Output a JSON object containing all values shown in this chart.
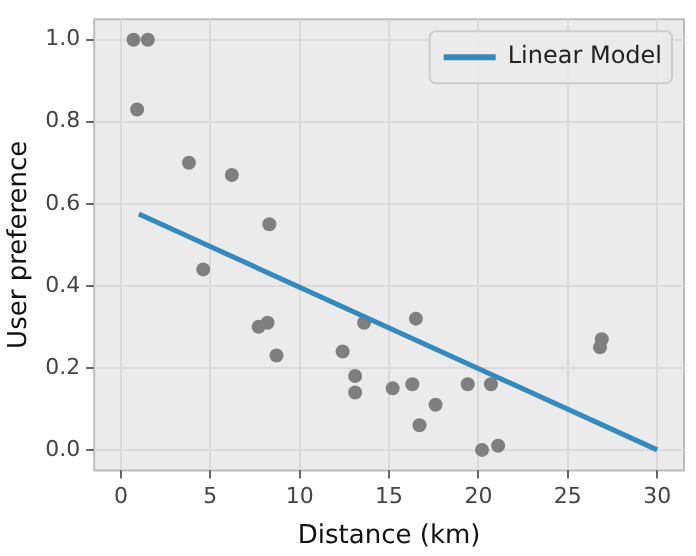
{
  "chart_data": {
    "type": "scatter",
    "xlabel": "Distance (km)",
    "ylabel": "User preference",
    "xlim": [
      -1.5,
      31.5
    ],
    "ylim": [
      -0.05,
      1.05
    ],
    "xticks": [
      0,
      5,
      10,
      15,
      20,
      25,
      30
    ],
    "yticks": [
      {
        "value": 0,
        "label": "0.0"
      },
      {
        "value": 0.2,
        "label": "0.2"
      },
      {
        "value": 0.4,
        "label": "0.4"
      },
      {
        "value": 0.6,
        "label": "0.6"
      },
      {
        "value": 0.8,
        "label": "0.8"
      },
      {
        "value": 1,
        "label": "1.0"
      }
    ],
    "grid": true,
    "legend": "top right",
    "marker": "circle",
    "series": [
      {
        "type": "scatter",
        "color": "#7f7f7f",
        "x": [
          0.7,
          1.5,
          0.9,
          3.8,
          6.2,
          4.6,
          8.3,
          7.7,
          8.2,
          8.7,
          12.4,
          13.1,
          13.1,
          13.6,
          15.2,
          16.3,
          16.5,
          16.7,
          17.6,
          19.4,
          20.2,
          20.7,
          21.1,
          26.8,
          26.9
        ],
        "values": [
          1.0,
          1.0,
          0.83,
          0.7,
          0.67,
          0.44,
          0.55,
          0.3,
          0.31,
          0.23,
          0.24,
          0.18,
          0.14,
          0.31,
          0.15,
          0.16,
          0.32,
          0.06,
          0.11,
          0.16,
          0.0,
          0.16,
          0.01,
          0.25,
          0.27
        ]
      },
      {
        "type": "line",
        "name": "Linear Model",
        "color": "#348abd",
        "x": [
          1,
          30
        ],
        "values": [
          0.575,
          0.0
        ],
        "marker": "none",
        "line_style": "solid"
      }
    ]
  }
}
